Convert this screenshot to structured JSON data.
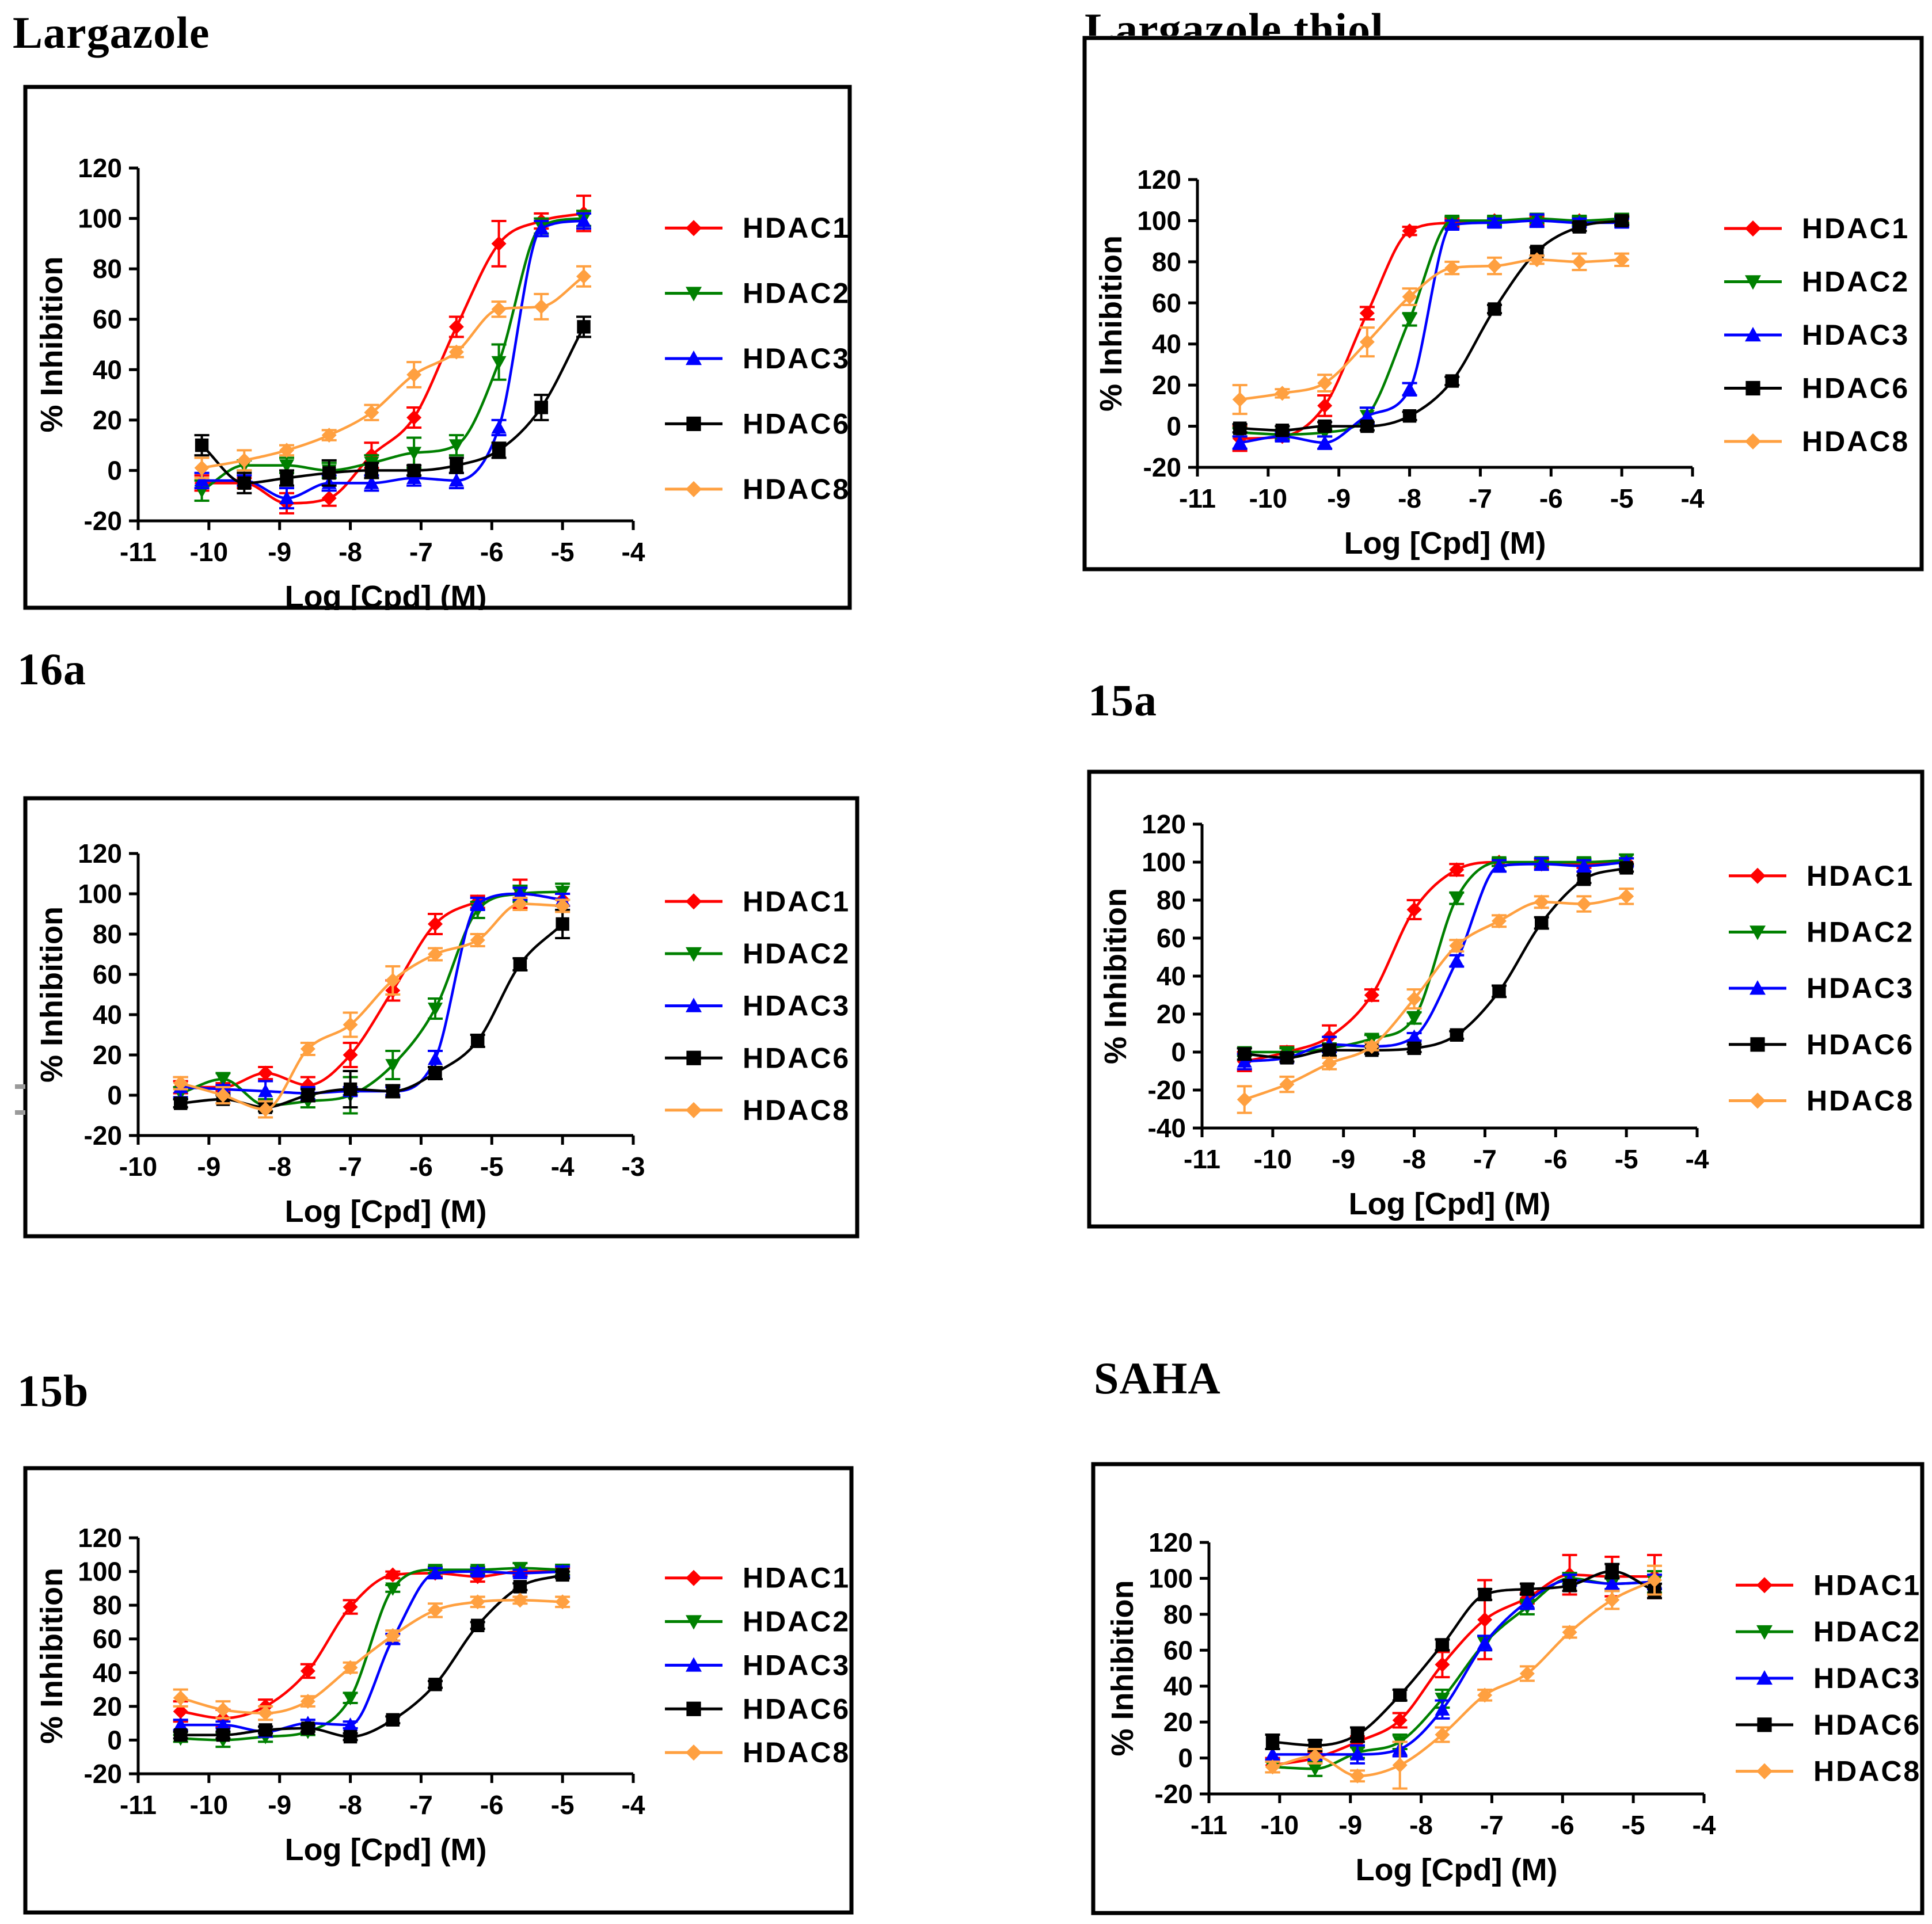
{
  "figure": {
    "ylabel_default": "% Inhibition",
    "xlabel_default": "Log [Cpd] (M)"
  },
  "chart_data": [
    {
      "id": "largazole",
      "type": "line",
      "title": "Largazole",
      "xlabel": "Log [Cpd] (M)",
      "ylabel": "% Inhibition",
      "xlim": [
        -11,
        -4
      ],
      "ylim": [
        -20,
        120
      ],
      "xticks": [
        -11,
        -10,
        -9,
        -8,
        -7,
        -6,
        -5,
        -4
      ],
      "yticks": [
        -20,
        0,
        20,
        40,
        60,
        80,
        100,
        120
      ],
      "legend_position": "right",
      "grid": false,
      "x": [
        -10.1,
        -9.5,
        -8.9,
        -8.3,
        -7.7,
        -7.1,
        -6.5,
        -5.9,
        -5.3,
        -4.7
      ],
      "series": [
        {
          "name": "HDAC1",
          "color": "#FF0000",
          "marker": "diamond",
          "y": [
            -5,
            -5,
            -13,
            -11,
            6,
            21,
            57,
            90,
            99,
            102
          ],
          "err": [
            3,
            2,
            4,
            3,
            5,
            4,
            4,
            9,
            3,
            7
          ]
        },
        {
          "name": "HDAC2",
          "color": "#008000",
          "marker": "triangle-down",
          "y": [
            -8,
            2,
            2,
            0,
            3,
            7,
            10,
            43,
            97,
            100
          ],
          "err": [
            4,
            2,
            3,
            3,
            3,
            6,
            4,
            7,
            3,
            3
          ]
        },
        {
          "name": "HDAC3",
          "color": "#0000FF",
          "marker": "triangle-up",
          "y": [
            -4,
            -4,
            -11,
            -5,
            -5,
            -3,
            -4,
            17,
            96,
            99
          ],
          "err": [
            3,
            2,
            4,
            3,
            3,
            3,
            3,
            3,
            3,
            3
          ]
        },
        {
          "name": "HDAC6",
          "color": "#000000",
          "marker": "square",
          "y": [
            10,
            -5,
            -3,
            -1,
            0,
            0,
            2,
            8,
            25,
            57
          ],
          "err": [
            4,
            4,
            3,
            5,
            3,
            2,
            3,
            3,
            5,
            4
          ]
        },
        {
          "name": "HDAC8",
          "color": "#FFA040",
          "marker": "diamond",
          "y": [
            1,
            4,
            8,
            14,
            23,
            38,
            47,
            64,
            65,
            77
          ],
          "err": [
            4,
            4,
            2,
            2,
            3,
            5,
            2,
            3,
            5,
            4
          ]
        }
      ]
    },
    {
      "id": "largazole-thiol",
      "type": "line",
      "title": "Largazole thiol",
      "xlabel": "Log [Cpd] (M)",
      "ylabel": "% Inhibition",
      "xlim": [
        -11,
        -4
      ],
      "ylim": [
        -20,
        120
      ],
      "xticks": [
        -11,
        -10,
        -9,
        -8,
        -7,
        -6,
        -5,
        -4
      ],
      "yticks": [
        -20,
        0,
        20,
        40,
        60,
        80,
        100,
        120
      ],
      "legend_position": "right",
      "grid": false,
      "x": [
        -10.4,
        -9.8,
        -9.2,
        -8.6,
        -8.0,
        -7.4,
        -6.8,
        -6.2,
        -5.6,
        -5.0
      ],
      "series": [
        {
          "name": "HDAC1",
          "color": "#FF0000",
          "marker": "diamond",
          "y": [
            -6,
            -5,
            10,
            55,
            95,
            99,
            100,
            100,
            100,
            100
          ],
          "err": [
            6,
            2,
            5,
            3,
            2,
            2,
            2,
            2,
            2,
            2
          ]
        },
        {
          "name": "HDAC2",
          "color": "#008000",
          "marker": "triangle-down",
          "y": [
            -3,
            -4,
            -3,
            5,
            52,
            100,
            100,
            101,
            100,
            101
          ],
          "err": [
            2,
            2,
            2,
            4,
            3,
            2,
            2,
            2,
            2,
            2
          ]
        },
        {
          "name": "HDAC3",
          "color": "#0000FF",
          "marker": "triangle-up",
          "y": [
            -8,
            -5,
            -8,
            5,
            18,
            98,
            99,
            100,
            99,
            99
          ],
          "err": [
            3,
            2,
            3,
            4,
            3,
            2,
            2,
            3,
            2,
            2
          ]
        },
        {
          "name": "HDAC6",
          "color": "#000000",
          "marker": "square",
          "y": [
            -1,
            -2,
            0,
            0,
            5,
            22,
            57,
            85,
            97,
            100
          ],
          "err": [
            2,
            2,
            2,
            2,
            2,
            2,
            2,
            2,
            2,
            2
          ]
        },
        {
          "name": "HDAC8",
          "color": "#FFA040",
          "marker": "diamond",
          "y": [
            13,
            16,
            21,
            41,
            63,
            77,
            78,
            81,
            80,
            81
          ],
          "err": [
            7,
            2,
            4,
            7,
            4,
            3,
            4,
            2,
            4,
            3
          ]
        }
      ]
    },
    {
      "id": "16a",
      "type": "line",
      "title": "16a",
      "xlabel": "Log [Cpd] (M)",
      "ylabel": "% Inhibition",
      "xlim": [
        -10,
        -3
      ],
      "ylim": [
        -20,
        120
      ],
      "xticks": [
        -10,
        -9,
        -8,
        -7,
        -6,
        -5,
        -4,
        -3
      ],
      "yticks": [
        -20,
        0,
        20,
        40,
        60,
        80,
        100,
        120
      ],
      "legend_position": "right",
      "grid": false,
      "x": [
        -9.4,
        -8.8,
        -8.2,
        -7.6,
        -7.0,
        -6.4,
        -5.8,
        -5.2,
        -4.6,
        -4.0
      ],
      "series": [
        {
          "name": "HDAC1",
          "color": "#FF0000",
          "marker": "diamond",
          "y": [
            4,
            4,
            11,
            5,
            20,
            52,
            85,
            96,
            100,
            97
          ],
          "err": [
            3,
            2,
            3,
            4,
            6,
            5,
            5,
            3,
            7,
            3
          ]
        },
        {
          "name": "HDAC2",
          "color": "#008000",
          "marker": "triangle-down",
          "y": [
            1,
            8,
            -5,
            -3,
            0,
            15,
            43,
            92,
            100,
            101
          ],
          "err": [
            3,
            3,
            3,
            3,
            9,
            7,
            5,
            4,
            4,
            4
          ]
        },
        {
          "name": "HDAC3",
          "color": "#0000FF",
          "marker": "triangle-up",
          "y": [
            4,
            3,
            2,
            1,
            2,
            2,
            18,
            95,
            100,
            97
          ],
          "err": [
            5,
            2,
            5,
            3,
            2,
            2,
            4,
            3,
            3,
            3
          ]
        },
        {
          "name": "HDAC6",
          "color": "#000000",
          "marker": "square",
          "y": [
            -4,
            -2,
            -6,
            0,
            3,
            2,
            11,
            27,
            65,
            85
          ],
          "err": [
            2,
            2,
            2,
            3,
            9,
            3,
            3,
            3,
            3,
            7
          ]
        },
        {
          "name": "HDAC8",
          "color": "#FFA040",
          "marker": "diamond",
          "y": [
            6,
            0,
            -7,
            23,
            35,
            57,
            70,
            77,
            95,
            94
          ],
          "err": [
            3,
            4,
            4,
            3,
            6,
            7,
            3,
            3,
            3,
            3
          ]
        }
      ]
    },
    {
      "id": "15a",
      "type": "line",
      "title": "15a",
      "xlabel": "Log [Cpd] (M)",
      "ylabel": "% Inhibition",
      "xlim": [
        -11,
        -4
      ],
      "ylim": [
        -40,
        120
      ],
      "xticks": [
        -11,
        -10,
        -9,
        -8,
        -7,
        -6,
        -5,
        -4
      ],
      "yticks": [
        -40,
        -20,
        0,
        20,
        40,
        60,
        80,
        100,
        120
      ],
      "legend_position": "right",
      "grid": false,
      "x": [
        -10.4,
        -9.8,
        -9.2,
        -8.6,
        -8.0,
        -7.4,
        -6.8,
        -6.2,
        -5.6,
        -5.0
      ],
      "series": [
        {
          "name": "HDAC1",
          "color": "#FF0000",
          "marker": "diamond",
          "y": [
            -5,
            0,
            8,
            30,
            75,
            96,
            100,
            99,
            99,
            100
          ],
          "err": [
            5,
            3,
            6,
            3,
            5,
            3,
            2,
            2,
            2,
            2
          ]
        },
        {
          "name": "HDAC2",
          "color": "#008000",
          "marker": "triangle-down",
          "y": [
            0,
            0,
            2,
            7,
            18,
            81,
            100,
            100,
            100,
            101
          ],
          "err": [
            2,
            2,
            2,
            2,
            3,
            3,
            2,
            2,
            2,
            3
          ]
        },
        {
          "name": "HDAC3",
          "color": "#0000FF",
          "marker": "triangle-up",
          "y": [
            -5,
            -3,
            4,
            3,
            8,
            48,
            98,
            99,
            98,
            100
          ],
          "err": [
            4,
            2,
            4,
            2,
            2,
            3,
            3,
            3,
            3,
            2
          ]
        },
        {
          "name": "HDAC6",
          "color": "#000000",
          "marker": "square",
          "y": [
            -1,
            -3,
            1,
            1,
            2,
            9,
            32,
            68,
            91,
            97
          ],
          "err": [
            3,
            2,
            3,
            2,
            2,
            2,
            3,
            3,
            2,
            2
          ]
        },
        {
          "name": "HDAC8",
          "color": "#FFA040",
          "marker": "diamond",
          "y": [
            -25,
            -17,
            -6,
            3,
            28,
            56,
            69,
            79,
            78,
            82
          ],
          "err": [
            7,
            4,
            3,
            2,
            5,
            3,
            3,
            3,
            4,
            4
          ]
        }
      ]
    },
    {
      "id": "15b",
      "type": "line",
      "title": "15b",
      "xlabel": "Log [Cpd] (M)",
      "ylabel": "% Inhibition",
      "xlim": [
        -11,
        -4
      ],
      "ylim": [
        -20,
        120
      ],
      "xticks": [
        -11,
        -10,
        -9,
        -8,
        -7,
        -6,
        -5,
        -4
      ],
      "yticks": [
        -20,
        0,
        20,
        40,
        60,
        80,
        100,
        120
      ],
      "legend_position": "right",
      "grid": false,
      "x": [
        -10.4,
        -9.8,
        -9.2,
        -8.6,
        -8.0,
        -7.4,
        -6.8,
        -6.2,
        -5.6,
        -5.0
      ],
      "series": [
        {
          "name": "HDAC1",
          "color": "#FF0000",
          "marker": "diamond",
          "y": [
            17,
            13,
            20,
            41,
            79,
            98,
            99,
            97,
            100,
            100
          ],
          "err": [
            6,
            5,
            4,
            4,
            4,
            2,
            2,
            3,
            2,
            2
          ]
        },
        {
          "name": "HDAC2",
          "color": "#008000",
          "marker": "triangle-down",
          "y": [
            1,
            0,
            2,
            5,
            25,
            90,
            101,
            101,
            102,
            101
          ],
          "err": [
            2,
            4,
            3,
            2,
            3,
            2,
            2,
            2,
            3,
            3
          ]
        },
        {
          "name": "HDAC3",
          "color": "#0000FF",
          "marker": "triangle-up",
          "y": [
            9,
            9,
            5,
            10,
            9,
            60,
            99,
            100,
            99,
            100
          ],
          "err": [
            3,
            2,
            3,
            2,
            2,
            3,
            3,
            2,
            2,
            3
          ]
        },
        {
          "name": "HDAC6",
          "color": "#000000",
          "marker": "square",
          "y": [
            3,
            3,
            6,
            7,
            2,
            12,
            33,
            68,
            91,
            98
          ],
          "err": [
            2,
            2,
            2,
            2,
            2,
            2,
            2,
            2,
            2,
            2
          ]
        },
        {
          "name": "HDAC8",
          "color": "#FFA040",
          "marker": "diamond",
          "y": [
            25,
            18,
            16,
            23,
            43,
            62,
            77,
            82,
            83,
            82
          ],
          "err": [
            5,
            5,
            4,
            3,
            3,
            3,
            4,
            3,
            2,
            3
          ]
        }
      ]
    },
    {
      "id": "saha",
      "type": "line",
      "title": "SAHA",
      "xlabel": "Log [Cpd] (M)",
      "ylabel": "% Inhibition",
      "xlim": [
        -11,
        -4
      ],
      "ylim": [
        -20,
        120
      ],
      "xticks": [
        -11,
        -10,
        -9,
        -8,
        -7,
        -6,
        -5,
        -4
      ],
      "yticks": [
        -20,
        0,
        20,
        40,
        60,
        80,
        100,
        120
      ],
      "legend_position": "right",
      "grid": false,
      "x": [
        -10.1,
        -9.5,
        -8.9,
        -8.3,
        -7.7,
        -7.1,
        -6.5,
        -5.9,
        -5.3,
        -4.7
      ],
      "series": [
        {
          "name": "HDAC1",
          "color": "#FF0000",
          "marker": "diamond",
          "y": [
            -4,
            0,
            9,
            21,
            52,
            77,
            89,
            102,
            101,
            101
          ],
          "err": [
            4,
            3,
            3,
            4,
            7,
            22,
            3,
            11,
            11,
            12
          ]
        },
        {
          "name": "HDAC2",
          "color": "#008000",
          "marker": "triangle-down",
          "y": [
            -5,
            -6,
            3,
            9,
            33,
            64,
            84,
            100,
            97,
            98
          ],
          "err": [
            3,
            4,
            3,
            4,
            5,
            4,
            4,
            3,
            4,
            6
          ]
        },
        {
          "name": "HDAC3",
          "color": "#0000FF",
          "marker": "triangle-up",
          "y": [
            2,
            2,
            2,
            5,
            27,
            64,
            87,
            99,
            97,
            98
          ],
          "err": [
            3,
            3,
            5,
            4,
            5,
            4,
            4,
            3,
            3,
            4
          ]
        },
        {
          "name": "HDAC6",
          "color": "#000000",
          "marker": "square",
          "y": [
            9,
            7,
            13,
            35,
            63,
            91,
            94,
            96,
            104,
            93
          ],
          "err": [
            4,
            3,
            4,
            3,
            3,
            3,
            3,
            3,
            4,
            4
          ]
        },
        {
          "name": "HDAC8",
          "color": "#FFA040",
          "marker": "diamond",
          "y": [
            -5,
            1,
            -10,
            -4,
            13,
            35,
            47,
            70,
            88,
            99
          ],
          "err": [
            3,
            4,
            3,
            13,
            4,
            3,
            4,
            3,
            5,
            8
          ]
        }
      ]
    }
  ]
}
